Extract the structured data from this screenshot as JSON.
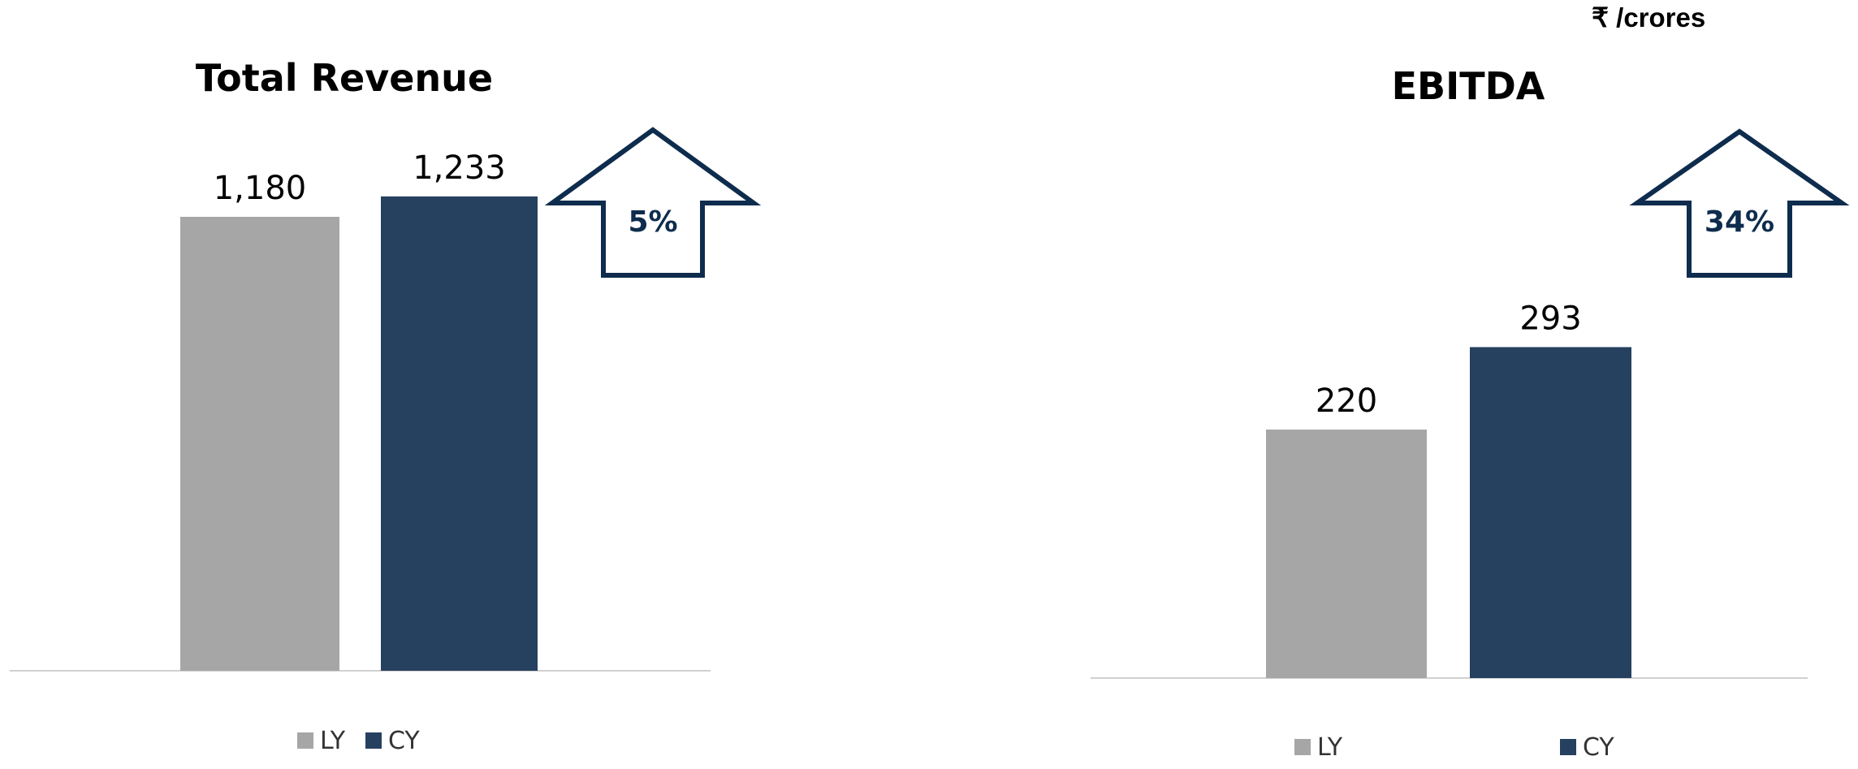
{
  "unit_label": "₹ /crores",
  "chart_data": [
    {
      "type": "bar",
      "title": "Total Revenue",
      "categories": [
        "LY",
        "CY"
      ],
      "values": [
        1180,
        1233
      ],
      "value_labels": [
        "1,180",
        "1,233"
      ],
      "growth_label": "5%",
      "legend": [
        "LY",
        "CY"
      ],
      "legend_placement": "bottom",
      "grid": false
    },
    {
      "type": "bar",
      "title": "EBITDA",
      "categories": [
        "LY",
        "CY"
      ],
      "values": [
        220,
        293
      ],
      "value_labels": [
        "220",
        "293"
      ],
      "growth_label": "34%",
      "legend": [
        "LY",
        "CY"
      ],
      "legend_placement": "bottom",
      "grid": false
    }
  ],
  "colors": {
    "ly": "#A6A6A6",
    "cy": "#264060",
    "arrow": "#0E2C4D",
    "axis": "#D0D0D0"
  }
}
